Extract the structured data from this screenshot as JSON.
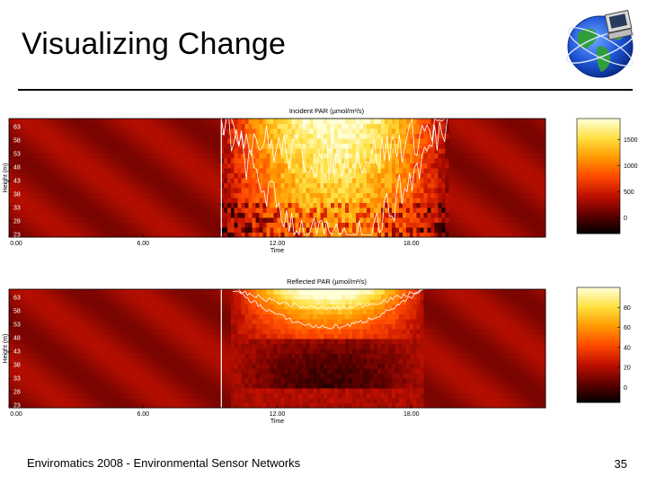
{
  "slide": {
    "title": "Visualizing Change",
    "footer": "Enviromatics 2008 - Environmental Sensor Networks",
    "page_number": "35"
  },
  "icons": {
    "logo": "globe-with-computer-icon"
  },
  "chart_data": [
    {
      "type": "heatmap",
      "title": "Incident PAR (µmol/m²/s)",
      "xlabel": "Time",
      "ylabel": "Height (m)",
      "x_ticks": [
        "0.00",
        "6.00",
        "12.00",
        "18.00"
      ],
      "x_tick_hours": [
        0,
        6,
        12,
        18
      ],
      "xlim": [
        0,
        24
      ],
      "y_ticks": [
        "63",
        "58",
        "53",
        "48",
        "43",
        "38",
        "33",
        "28",
        "23"
      ],
      "y_tick_values": [
        63,
        58,
        53,
        48,
        43,
        38,
        33,
        28,
        23
      ],
      "ylim": [
        22,
        66
      ],
      "colorbar_ticks": [
        "1500",
        "1000",
        "500",
        "0"
      ],
      "colorbar_tick_values": [
        1500,
        1000,
        500,
        0
      ],
      "colorbar_range": [
        -300,
        1900
      ],
      "colormap": [
        "#000000",
        "#600000",
        "#c01000",
        "#ff4a00",
        "#ff9a00",
        "#ffe040",
        "#ffffd8"
      ],
      "daylight_hours": [
        9.5,
        19.6
      ],
      "marker_hour": 9.5
    },
    {
      "type": "heatmap",
      "title": "Reflected PAR (µmol/m²/s)",
      "xlabel": "Time",
      "ylabel": "Height (m)",
      "x_ticks": [
        "0.00",
        "6.00",
        "12.00",
        "18.00"
      ],
      "x_tick_hours": [
        0,
        6,
        12,
        18
      ],
      "xlim": [
        0,
        24
      ],
      "y_ticks": [
        "63",
        "58",
        "53",
        "48",
        "43",
        "38",
        "33",
        "28",
        "23"
      ],
      "y_tick_values": [
        63,
        58,
        53,
        48,
        43,
        38,
        33,
        28,
        23
      ],
      "ylim": [
        22,
        66
      ],
      "colorbar_ticks": [
        "80",
        "60",
        "40",
        "20",
        "0"
      ],
      "colorbar_tick_values": [
        80,
        60,
        40,
        20,
        0
      ],
      "colorbar_range": [
        -15,
        100
      ],
      "colormap": [
        "#000000",
        "#600000",
        "#c01000",
        "#ff4a00",
        "#ff9a00",
        "#ffe040",
        "#ffffd8"
      ],
      "daylight_hours": [
        10.0,
        18.6
      ],
      "marker_hour": 9.5
    }
  ]
}
